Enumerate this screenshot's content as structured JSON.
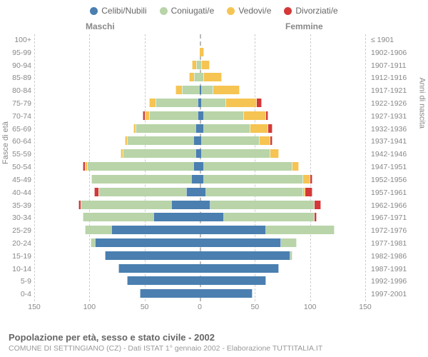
{
  "legend": [
    {
      "label": "Celibi/Nubili",
      "color": "#4a7fb0"
    },
    {
      "label": "Coniugati/e",
      "color": "#b8d4a8"
    },
    {
      "label": "Vedovi/e",
      "color": "#f5c452"
    },
    {
      "label": "Divorziati/e",
      "color": "#d43838"
    }
  ],
  "header": {
    "male": "Maschi",
    "female": "Femmine"
  },
  "axis": {
    "left_title": "Fasce di età",
    "right_title": "Anni di nascita",
    "xlim": 150,
    "xticks": [
      150,
      100,
      50,
      0,
      50,
      100,
      150
    ]
  },
  "colors": {
    "single": "#4a7fb0",
    "married": "#b8d4a8",
    "widowed": "#f5c452",
    "divorced": "#d43838",
    "grid": "#cccccc",
    "center": "#bbbbbb"
  },
  "footer": {
    "title": "Popolazione per età, sesso e stato civile - 2002",
    "subtitle": "COMUNE DI SETTINGIANO (CZ) - Dati ISTAT 1° gennaio 2002 - Elaborazione TUTTITALIA.IT"
  },
  "rows": [
    {
      "age": "100+",
      "birth": "≤ 1901",
      "m": {
        "s": 0,
        "c": 0,
        "v": 0,
        "d": 0
      },
      "f": {
        "s": 0,
        "c": 0,
        "v": 0,
        "d": 0
      }
    },
    {
      "age": "95-99",
      "birth": "1902-1906",
      "m": {
        "s": 0,
        "c": 0,
        "v": 0,
        "d": 0
      },
      "f": {
        "s": 0,
        "c": 0,
        "v": 4,
        "d": 0
      }
    },
    {
      "age": "90-94",
      "birth": "1907-1911",
      "m": {
        "s": 0,
        "c": 3,
        "v": 4,
        "d": 0
      },
      "f": {
        "s": 0,
        "c": 2,
        "v": 7,
        "d": 0
      }
    },
    {
      "age": "85-89",
      "birth": "1912-1916",
      "m": {
        "s": 0,
        "c": 5,
        "v": 5,
        "d": 0
      },
      "f": {
        "s": 0,
        "c": 4,
        "v": 16,
        "d": 0
      }
    },
    {
      "age": "80-84",
      "birth": "1917-1921",
      "m": {
        "s": 0,
        "c": 16,
        "v": 6,
        "d": 0
      },
      "f": {
        "s": 2,
        "c": 10,
        "v": 24,
        "d": 0
      }
    },
    {
      "age": "75-79",
      "birth": "1922-1926",
      "m": {
        "s": 2,
        "c": 38,
        "v": 6,
        "d": 0
      },
      "f": {
        "s": 2,
        "c": 22,
        "v": 28,
        "d": 4
      }
    },
    {
      "age": "70-74",
      "birth": "1927-1931",
      "m": {
        "s": 2,
        "c": 44,
        "v": 4,
        "d": 2
      },
      "f": {
        "s": 4,
        "c": 36,
        "v": 20,
        "d": 2
      }
    },
    {
      "age": "65-69",
      "birth": "1932-1936",
      "m": {
        "s": 4,
        "c": 54,
        "v": 2,
        "d": 0
      },
      "f": {
        "s": 4,
        "c": 42,
        "v": 16,
        "d": 4
      }
    },
    {
      "age": "60-64",
      "birth": "1937-1941",
      "m": {
        "s": 6,
        "c": 60,
        "v": 2,
        "d": 0
      },
      "f": {
        "s": 2,
        "c": 52,
        "v": 10,
        "d": 2
      }
    },
    {
      "age": "55-59",
      "birth": "1942-1946",
      "m": {
        "s": 4,
        "c": 66,
        "v": 2,
        "d": 0
      },
      "f": {
        "s": 2,
        "c": 62,
        "v": 8,
        "d": 0
      }
    },
    {
      "age": "50-54",
      "birth": "1947-1951",
      "m": {
        "s": 6,
        "c": 96,
        "v": 2,
        "d": 2
      },
      "f": {
        "s": 4,
        "c": 80,
        "v": 6,
        "d": 0
      }
    },
    {
      "age": "45-49",
      "birth": "1952-1956",
      "m": {
        "s": 8,
        "c": 90,
        "v": 0,
        "d": 0
      },
      "f": {
        "s": 4,
        "c": 90,
        "v": 6,
        "d": 2
      }
    },
    {
      "age": "40-44",
      "birth": "1957-1961",
      "m": {
        "s": 12,
        "c": 80,
        "v": 0,
        "d": 4
      },
      "f": {
        "s": 6,
        "c": 88,
        "v": 2,
        "d": 6
      }
    },
    {
      "age": "35-39",
      "birth": "1962-1966",
      "m": {
        "s": 26,
        "c": 82,
        "v": 0,
        "d": 2
      },
      "f": {
        "s": 10,
        "c": 94,
        "v": 0,
        "d": 6
      }
    },
    {
      "age": "30-34",
      "birth": "1967-1971",
      "m": {
        "s": 42,
        "c": 64,
        "v": 0,
        "d": 0
      },
      "f": {
        "s": 22,
        "c": 82,
        "v": 0,
        "d": 2
      }
    },
    {
      "age": "25-29",
      "birth": "1972-1976",
      "m": {
        "s": 80,
        "c": 24,
        "v": 0,
        "d": 0
      },
      "f": {
        "s": 60,
        "c": 62,
        "v": 0,
        "d": 0
      }
    },
    {
      "age": "20-24",
      "birth": "1977-1981",
      "m": {
        "s": 95,
        "c": 4,
        "v": 0,
        "d": 0
      },
      "f": {
        "s": 74,
        "c": 14,
        "v": 0,
        "d": 0
      }
    },
    {
      "age": "15-19",
      "birth": "1982-1986",
      "m": {
        "s": 86,
        "c": 0,
        "v": 0,
        "d": 0
      },
      "f": {
        "s": 82,
        "c": 2,
        "v": 0,
        "d": 0
      }
    },
    {
      "age": "10-14",
      "birth": "1987-1991",
      "m": {
        "s": 74,
        "c": 0,
        "v": 0,
        "d": 0
      },
      "f": {
        "s": 72,
        "c": 0,
        "v": 0,
        "d": 0
      }
    },
    {
      "age": "5-9",
      "birth": "1992-1996",
      "m": {
        "s": 66,
        "c": 0,
        "v": 0,
        "d": 0
      },
      "f": {
        "s": 60,
        "c": 0,
        "v": 0,
        "d": 0
      }
    },
    {
      "age": "0-4",
      "birth": "1997-2001",
      "m": {
        "s": 54,
        "c": 0,
        "v": 0,
        "d": 0
      },
      "f": {
        "s": 48,
        "c": 0,
        "v": 0,
        "d": 0
      }
    }
  ]
}
